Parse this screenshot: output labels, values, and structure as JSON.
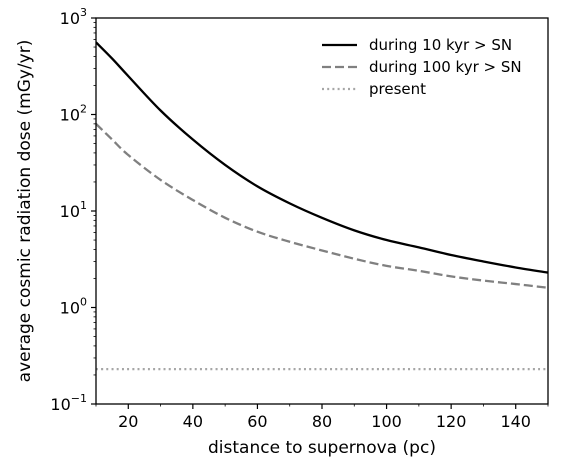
{
  "chart_data": {
    "type": "line",
    "xlabel": "distance to supernova (pc)",
    "ylabel": "average cosmic radiation dose (mGy/yr)",
    "xlim": [
      10,
      150
    ],
    "ylim": [
      0.1,
      1000
    ],
    "yscale": "log",
    "xticks": [
      20,
      40,
      60,
      80,
      100,
      120,
      140
    ],
    "xtick_labels": [
      "20",
      "40",
      "60",
      "80",
      "100",
      "120",
      "140"
    ],
    "yticks": [
      0.1,
      1,
      10,
      100,
      1000
    ],
    "ytick_labels": [
      {
        "base": "10",
        "exp": "−1"
      },
      {
        "base": "10",
        "exp": "0"
      },
      {
        "base": "10",
        "exp": "1"
      },
      {
        "base": "10",
        "exp": "2"
      },
      {
        "base": "10",
        "exp": "3"
      }
    ],
    "grid": false,
    "legend_position": "top-right",
    "series": [
      {
        "name": "during 10 kyr > SN",
        "style": "solid",
        "color": "#000000",
        "x": [
          10,
          15,
          20,
          30,
          40,
          50,
          60,
          70,
          80,
          90,
          100,
          110,
          120,
          130,
          140,
          150
        ],
        "y": [
          560,
          380,
          250,
          110,
          55,
          30,
          18,
          12,
          8.5,
          6.3,
          5.0,
          4.2,
          3.5,
          3.0,
          2.6,
          2.3
        ]
      },
      {
        "name": "during 100 kyr > SN",
        "style": "dashed",
        "color": "#808080",
        "x": [
          10,
          15,
          20,
          30,
          40,
          50,
          60,
          70,
          80,
          90,
          100,
          110,
          120,
          130,
          140,
          150
        ],
        "y": [
          80,
          55,
          38,
          21,
          13,
          8.5,
          6.1,
          4.8,
          3.9,
          3.2,
          2.7,
          2.4,
          2.1,
          1.9,
          1.75,
          1.6
        ]
      },
      {
        "name": "present",
        "style": "dotted",
        "color": "#a6a6a6",
        "x": [
          10,
          150
        ],
        "y": [
          0.23,
          0.23
        ]
      }
    ]
  }
}
